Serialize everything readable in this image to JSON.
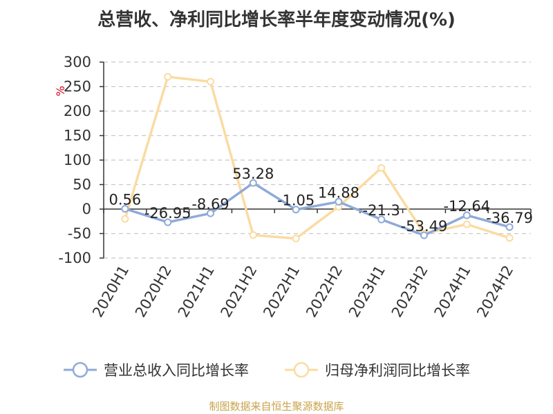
{
  "title": "总营收、净利同比增长率半年度变动情况(%)",
  "source": "制图数据来自恒生聚源数据库",
  "chart_data": {
    "type": "line",
    "title": "总营收、净利同比增长率半年度变动情况(%)",
    "ylabel": "%",
    "ylim": [
      -100,
      300
    ],
    "yticks": [
      -100,
      -50,
      0,
      50,
      100,
      150,
      200,
      250,
      300
    ],
    "grid": true,
    "legend_position": "bottom",
    "categories": [
      "2020H1",
      "2020H2",
      "2021H1",
      "2021H2",
      "2022H1",
      "2022H2",
      "2023H1",
      "2023H2",
      "2024H1",
      "2024H2"
    ],
    "series": [
      {
        "name": "营业总收入同比增长率",
        "color": "#8eaad8",
        "values": [
          0.56,
          -26.95,
          -8.69,
          53.28,
          -1.05,
          14.88,
          -21.3,
          -53.49,
          -12.64,
          -36.79
        ],
        "labels": [
          "0.56",
          "-26.95",
          "-8.69",
          "53.28",
          "-1.05",
          "14.88",
          "-21.3",
          "-53.49",
          "-12.64",
          "-36.79"
        ]
      },
      {
        "name": "归母净利润同比增长率",
        "color": "#fbdba2",
        "values": [
          -20,
          270,
          260,
          -53,
          -60,
          5,
          84,
          -50,
          -31,
          -59
        ]
      }
    ]
  }
}
